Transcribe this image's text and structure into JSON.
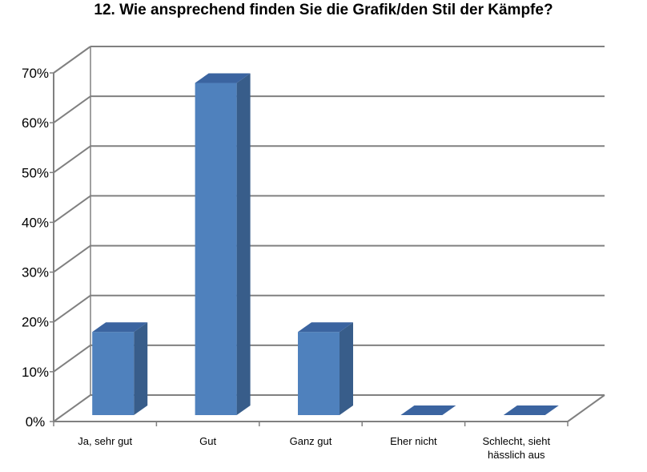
{
  "chart_data": {
    "type": "bar",
    "title": "12. Wie ansprechend finden Sie die Grafik/den Stil der Kämpfe?",
    "xlabel": "",
    "ylabel": "",
    "categories": [
      [
        "Ja, sehr gut"
      ],
      [
        "Gut"
      ],
      [
        "Ganz gut"
      ],
      [
        "Eher nicht"
      ],
      [
        "Schlecht, sieht",
        "hässlich aus"
      ]
    ],
    "values": [
      16.7,
      66.7,
      16.7,
      0,
      0
    ],
    "ylim": [
      0,
      70
    ],
    "yticks": [
      "0%",
      "10%",
      "20%",
      "30%",
      "40%",
      "50%",
      "60%",
      "70%"
    ],
    "grid": true,
    "three_d": true,
    "colors": {
      "bar_front": "#4F81BD",
      "bar_side": "#385D8A",
      "bar_top": "#3B64A0",
      "grid": "#808080"
    }
  }
}
